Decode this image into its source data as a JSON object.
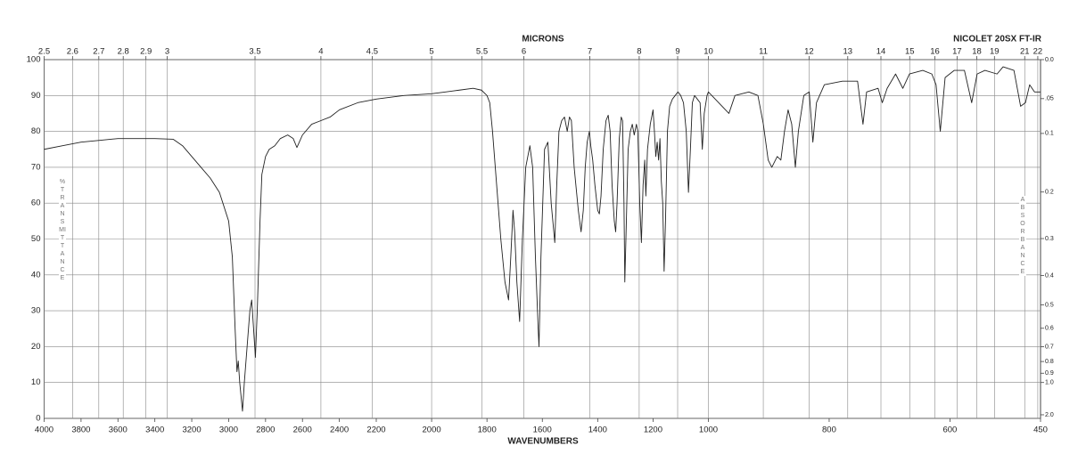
{
  "chart_data": {
    "type": "line",
    "title": "NICOLET 20SX FT-IR",
    "x_label": "WAVENUMBERS",
    "x2_label": "MICRONS",
    "y_label": "%TRANSMITTANCE",
    "y2_label": "ABSORBANCE",
    "color": "#222222",
    "grid": true,
    "xlim": [
      4000,
      450
    ],
    "x_scale_breaks": [
      2200,
      1000
    ],
    "xticks": [
      4000,
      3800,
      3600,
      3400,
      3200,
      3000,
      2800,
      2600,
      2400,
      2200,
      2000,
      1800,
      1600,
      1400,
      1200,
      1000,
      800,
      600,
      450
    ],
    "x2_scale": "reciprocal",
    "x2ticks": [
      2.5,
      2.6,
      2.7,
      2.8,
      2.9,
      3,
      3.5,
      4,
      4.5,
      5,
      5.5,
      6,
      7,
      8,
      9,
      10,
      11,
      12,
      13,
      14,
      15,
      16,
      17,
      18,
      19,
      21,
      22
    ],
    "ylim": [
      0,
      100
    ],
    "yticks": [
      0,
      10,
      20,
      30,
      40,
      50,
      60,
      70,
      80,
      90,
      100
    ],
    "y2_scale": "absorbance",
    "y2ticks": [
      {
        "value": 0,
        "label": "0.0"
      },
      {
        "value": 0.05,
        "label": ".05"
      },
      0.1,
      0.2,
      0.3,
      0.4,
      0.5,
      0.6,
      0.7,
      0.8,
      0.9,
      {
        "value": 1,
        "label": "1.0"
      },
      {
        "value": 2,
        "label": "2.0"
      }
    ],
    "x": [
      4000,
      3900,
      3800,
      3700,
      3600,
      3500,
      3400,
      3300,
      3250,
      3200,
      3150,
      3100,
      3050,
      3000,
      2980,
      2965,
      2955,
      2948,
      2940,
      2925,
      2915,
      2900,
      2885,
      2875,
      2865,
      2855,
      2845,
      2830,
      2820,
      2800,
      2780,
      2750,
      2720,
      2680,
      2650,
      2630,
      2600,
      2550,
      2500,
      2450,
      2400,
      2300,
      2200,
      2100,
      2000,
      1950,
      1900,
      1850,
      1820,
      1800,
      1790,
      1780,
      1765,
      1750,
      1735,
      1722,
      1714,
      1706,
      1700,
      1692,
      1682,
      1672,
      1660,
      1645,
      1635,
      1625,
      1615,
      1612,
      1605,
      1592,
      1580,
      1568,
      1555,
      1548,
      1540,
      1530,
      1520,
      1510,
      1502,
      1495,
      1485,
      1470,
      1460,
      1452,
      1445,
      1438,
      1430,
      1425,
      1418,
      1410,
      1400,
      1394,
      1388,
      1380,
      1370,
      1362,
      1355,
      1348,
      1340,
      1335,
      1330,
      1322,
      1315,
      1310,
      1305,
      1302,
      1298,
      1290,
      1282,
      1275,
      1268,
      1260,
      1255,
      1248,
      1242,
      1236,
      1230,
      1226,
      1220,
      1210,
      1200,
      1195,
      1190,
      1185,
      1180,
      1175,
      1170,
      1165,
      1160,
      1155,
      1148,
      1140,
      1130,
      1120,
      1110,
      1100,
      1090,
      1080,
      1072,
      1065,
      1058,
      1050,
      1040,
      1030,
      1022,
      1015,
      1005,
      1000,
      966,
      956,
      933,
      918,
      909,
      901,
      895,
      886,
      880,
      874,
      868,
      862,
      856,
      851,
      842,
      833,
      827,
      821,
      808,
      778,
      753,
      744,
      738,
      719,
      712,
      704,
      690,
      678,
      667,
      645,
      630,
      623,
      616,
      608,
      593,
      576,
      564,
      555,
      542,
      522,
      512,
      494,
      483,
      475,
      468,
      460,
      450
    ],
    "values": [
      75,
      76,
      77,
      77.5,
      78,
      78,
      78,
      77.8,
      76,
      73,
      70,
      67,
      63,
      55,
      45,
      25,
      13,
      16,
      10,
      2,
      10,
      20,
      30,
      33,
      25,
      17,
      30,
      55,
      68,
      73,
      75,
      76,
      78,
      79,
      78,
      75.5,
      79,
      82,
      83,
      84,
      86,
      88,
      89,
      90,
      90.5,
      91,
      91.5,
      92,
      91.5,
      90,
      88,
      80,
      65,
      50,
      38,
      33,
      45,
      58,
      52,
      38,
      27,
      50,
      70,
      76,
      70,
      45,
      25,
      20,
      45,
      75,
      77,
      60,
      49,
      65,
      80,
      83,
      84,
      80,
      84,
      83,
      70,
      58,
      52,
      58,
      70,
      77,
      80,
      76,
      72,
      65,
      58,
      57,
      62,
      75,
      83,
      84.5,
      80,
      65,
      55,
      52,
      60,
      78,
      84,
      83,
      60,
      38,
      50,
      75,
      80,
      82,
      79,
      82,
      80,
      60,
      49,
      65,
      72,
      62,
      75,
      82,
      86,
      80,
      73,
      77,
      72,
      78,
      66,
      60,
      41,
      55,
      80,
      87,
      89,
      90,
      91,
      90,
      88,
      80,
      63,
      75,
      88,
      90,
      89,
      88,
      75,
      85,
      90,
      91,
      85,
      90,
      91,
      90,
      82,
      72,
      70,
      73,
      72,
      80,
      86,
      82,
      70,
      80,
      90,
      91,
      77,
      88,
      93,
      94,
      94,
      82,
      91,
      92,
      88,
      92,
      96,
      92,
      96,
      97,
      96,
      93,
      80,
      95,
      97,
      97,
      88,
      96,
      97,
      96,
      98,
      97,
      87,
      88,
      93,
      91,
      91
    ]
  }
}
